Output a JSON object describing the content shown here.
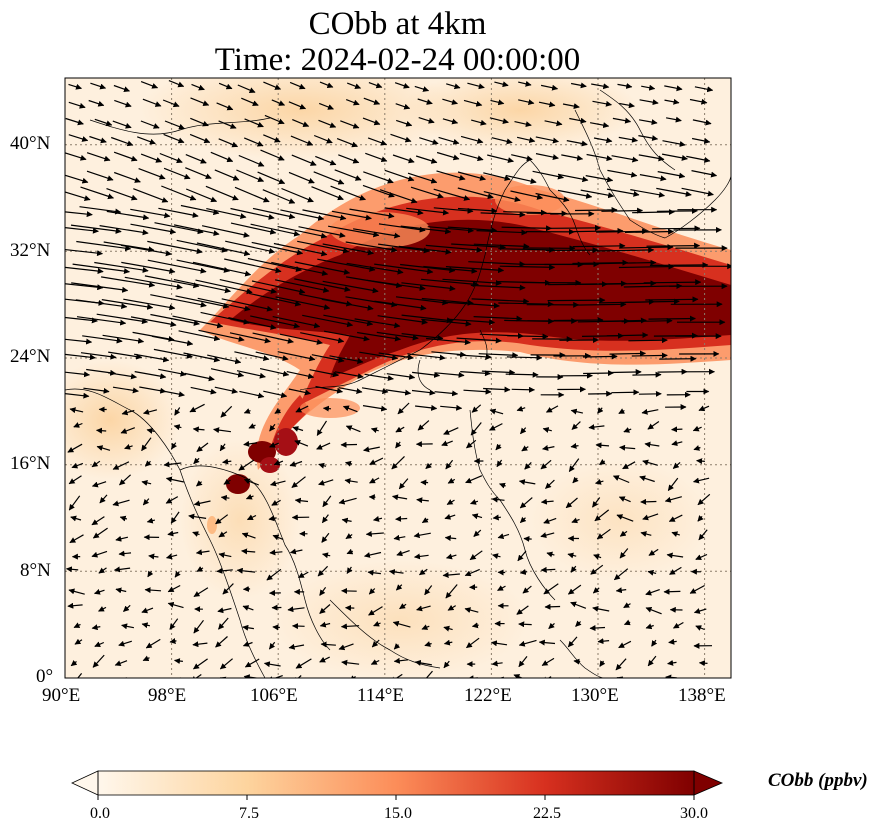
{
  "title": {
    "line1": "CObb at 4km",
    "line2": "Time: 2024-02-24 00:00:00"
  },
  "map": {
    "lon_range": [
      90,
      140
    ],
    "lat_range": [
      0,
      45
    ],
    "x_ticks": [
      "90°E",
      "98°E",
      "106°E",
      "114°E",
      "122°E",
      "130°E",
      "138°E"
    ],
    "y_ticks": [
      "0°",
      "8°N",
      "16°N",
      "24°N",
      "32°N",
      "40°N"
    ],
    "gridlines": "dotted",
    "vectors": "wind arrows"
  },
  "colorbar": {
    "title": "CObb (ppbv)",
    "ticks": [
      "0.0",
      "7.5",
      "15.0",
      "22.5",
      "30.0"
    ],
    "min": 0,
    "max": 30,
    "cmap": "OrRd",
    "extend": "both",
    "colors": [
      "#fff7ec",
      "#fdd49e",
      "#fc8d59",
      "#d7301f",
      "#7f0000"
    ]
  }
}
